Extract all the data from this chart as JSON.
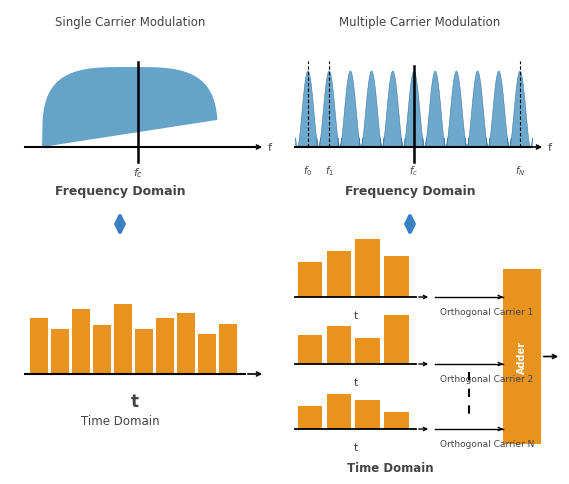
{
  "bg_color": "#ffffff",
  "blue_color": "#4a90b8",
  "blue_fill": "#5599c4",
  "orange_color": "#E8931E",
  "arrow_blue": "#3a7fbf",
  "text_color": "#444444",
  "title_sc": "Single Carrier Modulation",
  "title_mc": "Multiple Carrier Modulation",
  "label_fd": "Frequency Domain",
  "label_td_left": "Time Domain",
  "label_td_right": "Time Domain",
  "label_t": "t",
  "label_f": "f",
  "label_fc_left": "$f_c$",
  "label_f0": "$f_0$",
  "label_f1": "$f_1$",
  "label_fc_right": "$f_c$",
  "label_fN": "$f_N$",
  "oc1": "Orthogonal Carrier 1",
  "oc2": "Orthogonal Carrier 2",
  "ocN": "Orthogonal Carrier N",
  "adder": "Adder",
  "sc_bars": [
    0.62,
    0.5,
    0.72,
    0.55,
    0.78,
    0.5,
    0.62,
    0.68,
    0.44,
    0.56
  ],
  "mc_bars1": [
    0.6,
    0.8,
    1.0,
    0.7
  ],
  "mc_bars2": [
    0.5,
    0.65,
    0.45,
    0.85
  ],
  "mc_bars3": [
    0.4,
    0.6,
    0.5,
    0.3
  ]
}
